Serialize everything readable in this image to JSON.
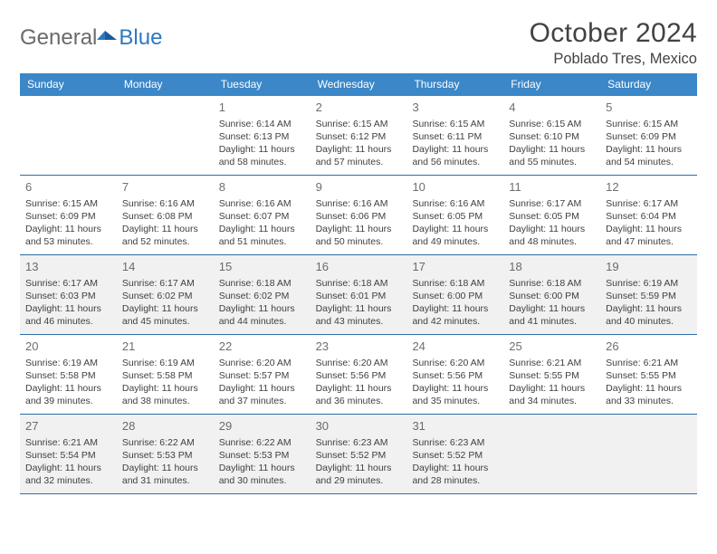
{
  "logo": {
    "text_gray": "General",
    "text_blue": "Blue"
  },
  "header": {
    "title": "October 2024",
    "location": "Poblado Tres, Mexico"
  },
  "colors": {
    "header_bg": "#3b87c8",
    "header_text": "#ffffff",
    "border": "#2f6ea8",
    "shaded_bg": "#f1f1f1",
    "text": "#3f3f3f",
    "daynum": "#6f6f6f",
    "logo_gray": "#6a6a6a",
    "logo_blue": "#2f78c0"
  },
  "day_labels": [
    "Sunday",
    "Monday",
    "Tuesday",
    "Wednesday",
    "Thursday",
    "Friday",
    "Saturday"
  ],
  "weeks": [
    {
      "shaded": false,
      "cells": [
        {
          "n": "",
          "sr": "",
          "ss": "",
          "dl": ""
        },
        {
          "n": "",
          "sr": "",
          "ss": "",
          "dl": ""
        },
        {
          "n": "1",
          "sr": "Sunrise: 6:14 AM",
          "ss": "Sunset: 6:13 PM",
          "dl": "Daylight: 11 hours and 58 minutes."
        },
        {
          "n": "2",
          "sr": "Sunrise: 6:15 AM",
          "ss": "Sunset: 6:12 PM",
          "dl": "Daylight: 11 hours and 57 minutes."
        },
        {
          "n": "3",
          "sr": "Sunrise: 6:15 AM",
          "ss": "Sunset: 6:11 PM",
          "dl": "Daylight: 11 hours and 56 minutes."
        },
        {
          "n": "4",
          "sr": "Sunrise: 6:15 AM",
          "ss": "Sunset: 6:10 PM",
          "dl": "Daylight: 11 hours and 55 minutes."
        },
        {
          "n": "5",
          "sr": "Sunrise: 6:15 AM",
          "ss": "Sunset: 6:09 PM",
          "dl": "Daylight: 11 hours and 54 minutes."
        }
      ]
    },
    {
      "shaded": false,
      "cells": [
        {
          "n": "6",
          "sr": "Sunrise: 6:15 AM",
          "ss": "Sunset: 6:09 PM",
          "dl": "Daylight: 11 hours and 53 minutes."
        },
        {
          "n": "7",
          "sr": "Sunrise: 6:16 AM",
          "ss": "Sunset: 6:08 PM",
          "dl": "Daylight: 11 hours and 52 minutes."
        },
        {
          "n": "8",
          "sr": "Sunrise: 6:16 AM",
          "ss": "Sunset: 6:07 PM",
          "dl": "Daylight: 11 hours and 51 minutes."
        },
        {
          "n": "9",
          "sr": "Sunrise: 6:16 AM",
          "ss": "Sunset: 6:06 PM",
          "dl": "Daylight: 11 hours and 50 minutes."
        },
        {
          "n": "10",
          "sr": "Sunrise: 6:16 AM",
          "ss": "Sunset: 6:05 PM",
          "dl": "Daylight: 11 hours and 49 minutes."
        },
        {
          "n": "11",
          "sr": "Sunrise: 6:17 AM",
          "ss": "Sunset: 6:05 PM",
          "dl": "Daylight: 11 hours and 48 minutes."
        },
        {
          "n": "12",
          "sr": "Sunrise: 6:17 AM",
          "ss": "Sunset: 6:04 PM",
          "dl": "Daylight: 11 hours and 47 minutes."
        }
      ]
    },
    {
      "shaded": true,
      "cells": [
        {
          "n": "13",
          "sr": "Sunrise: 6:17 AM",
          "ss": "Sunset: 6:03 PM",
          "dl": "Daylight: 11 hours and 46 minutes."
        },
        {
          "n": "14",
          "sr": "Sunrise: 6:17 AM",
          "ss": "Sunset: 6:02 PM",
          "dl": "Daylight: 11 hours and 45 minutes."
        },
        {
          "n": "15",
          "sr": "Sunrise: 6:18 AM",
          "ss": "Sunset: 6:02 PM",
          "dl": "Daylight: 11 hours and 44 minutes."
        },
        {
          "n": "16",
          "sr": "Sunrise: 6:18 AM",
          "ss": "Sunset: 6:01 PM",
          "dl": "Daylight: 11 hours and 43 minutes."
        },
        {
          "n": "17",
          "sr": "Sunrise: 6:18 AM",
          "ss": "Sunset: 6:00 PM",
          "dl": "Daylight: 11 hours and 42 minutes."
        },
        {
          "n": "18",
          "sr": "Sunrise: 6:18 AM",
          "ss": "Sunset: 6:00 PM",
          "dl": "Daylight: 11 hours and 41 minutes."
        },
        {
          "n": "19",
          "sr": "Sunrise: 6:19 AM",
          "ss": "Sunset: 5:59 PM",
          "dl": "Daylight: 11 hours and 40 minutes."
        }
      ]
    },
    {
      "shaded": false,
      "cells": [
        {
          "n": "20",
          "sr": "Sunrise: 6:19 AM",
          "ss": "Sunset: 5:58 PM",
          "dl": "Daylight: 11 hours and 39 minutes."
        },
        {
          "n": "21",
          "sr": "Sunrise: 6:19 AM",
          "ss": "Sunset: 5:58 PM",
          "dl": "Daylight: 11 hours and 38 minutes."
        },
        {
          "n": "22",
          "sr": "Sunrise: 6:20 AM",
          "ss": "Sunset: 5:57 PM",
          "dl": "Daylight: 11 hours and 37 minutes."
        },
        {
          "n": "23",
          "sr": "Sunrise: 6:20 AM",
          "ss": "Sunset: 5:56 PM",
          "dl": "Daylight: 11 hours and 36 minutes."
        },
        {
          "n": "24",
          "sr": "Sunrise: 6:20 AM",
          "ss": "Sunset: 5:56 PM",
          "dl": "Daylight: 11 hours and 35 minutes."
        },
        {
          "n": "25",
          "sr": "Sunrise: 6:21 AM",
          "ss": "Sunset: 5:55 PM",
          "dl": "Daylight: 11 hours and 34 minutes."
        },
        {
          "n": "26",
          "sr": "Sunrise: 6:21 AM",
          "ss": "Sunset: 5:55 PM",
          "dl": "Daylight: 11 hours and 33 minutes."
        }
      ]
    },
    {
      "shaded": true,
      "cells": [
        {
          "n": "27",
          "sr": "Sunrise: 6:21 AM",
          "ss": "Sunset: 5:54 PM",
          "dl": "Daylight: 11 hours and 32 minutes."
        },
        {
          "n": "28",
          "sr": "Sunrise: 6:22 AM",
          "ss": "Sunset: 5:53 PM",
          "dl": "Daylight: 11 hours and 31 minutes."
        },
        {
          "n": "29",
          "sr": "Sunrise: 6:22 AM",
          "ss": "Sunset: 5:53 PM",
          "dl": "Daylight: 11 hours and 30 minutes."
        },
        {
          "n": "30",
          "sr": "Sunrise: 6:23 AM",
          "ss": "Sunset: 5:52 PM",
          "dl": "Daylight: 11 hours and 29 minutes."
        },
        {
          "n": "31",
          "sr": "Sunrise: 6:23 AM",
          "ss": "Sunset: 5:52 PM",
          "dl": "Daylight: 11 hours and 28 minutes."
        },
        {
          "n": "",
          "sr": "",
          "ss": "",
          "dl": ""
        },
        {
          "n": "",
          "sr": "",
          "ss": "",
          "dl": ""
        }
      ]
    }
  ]
}
